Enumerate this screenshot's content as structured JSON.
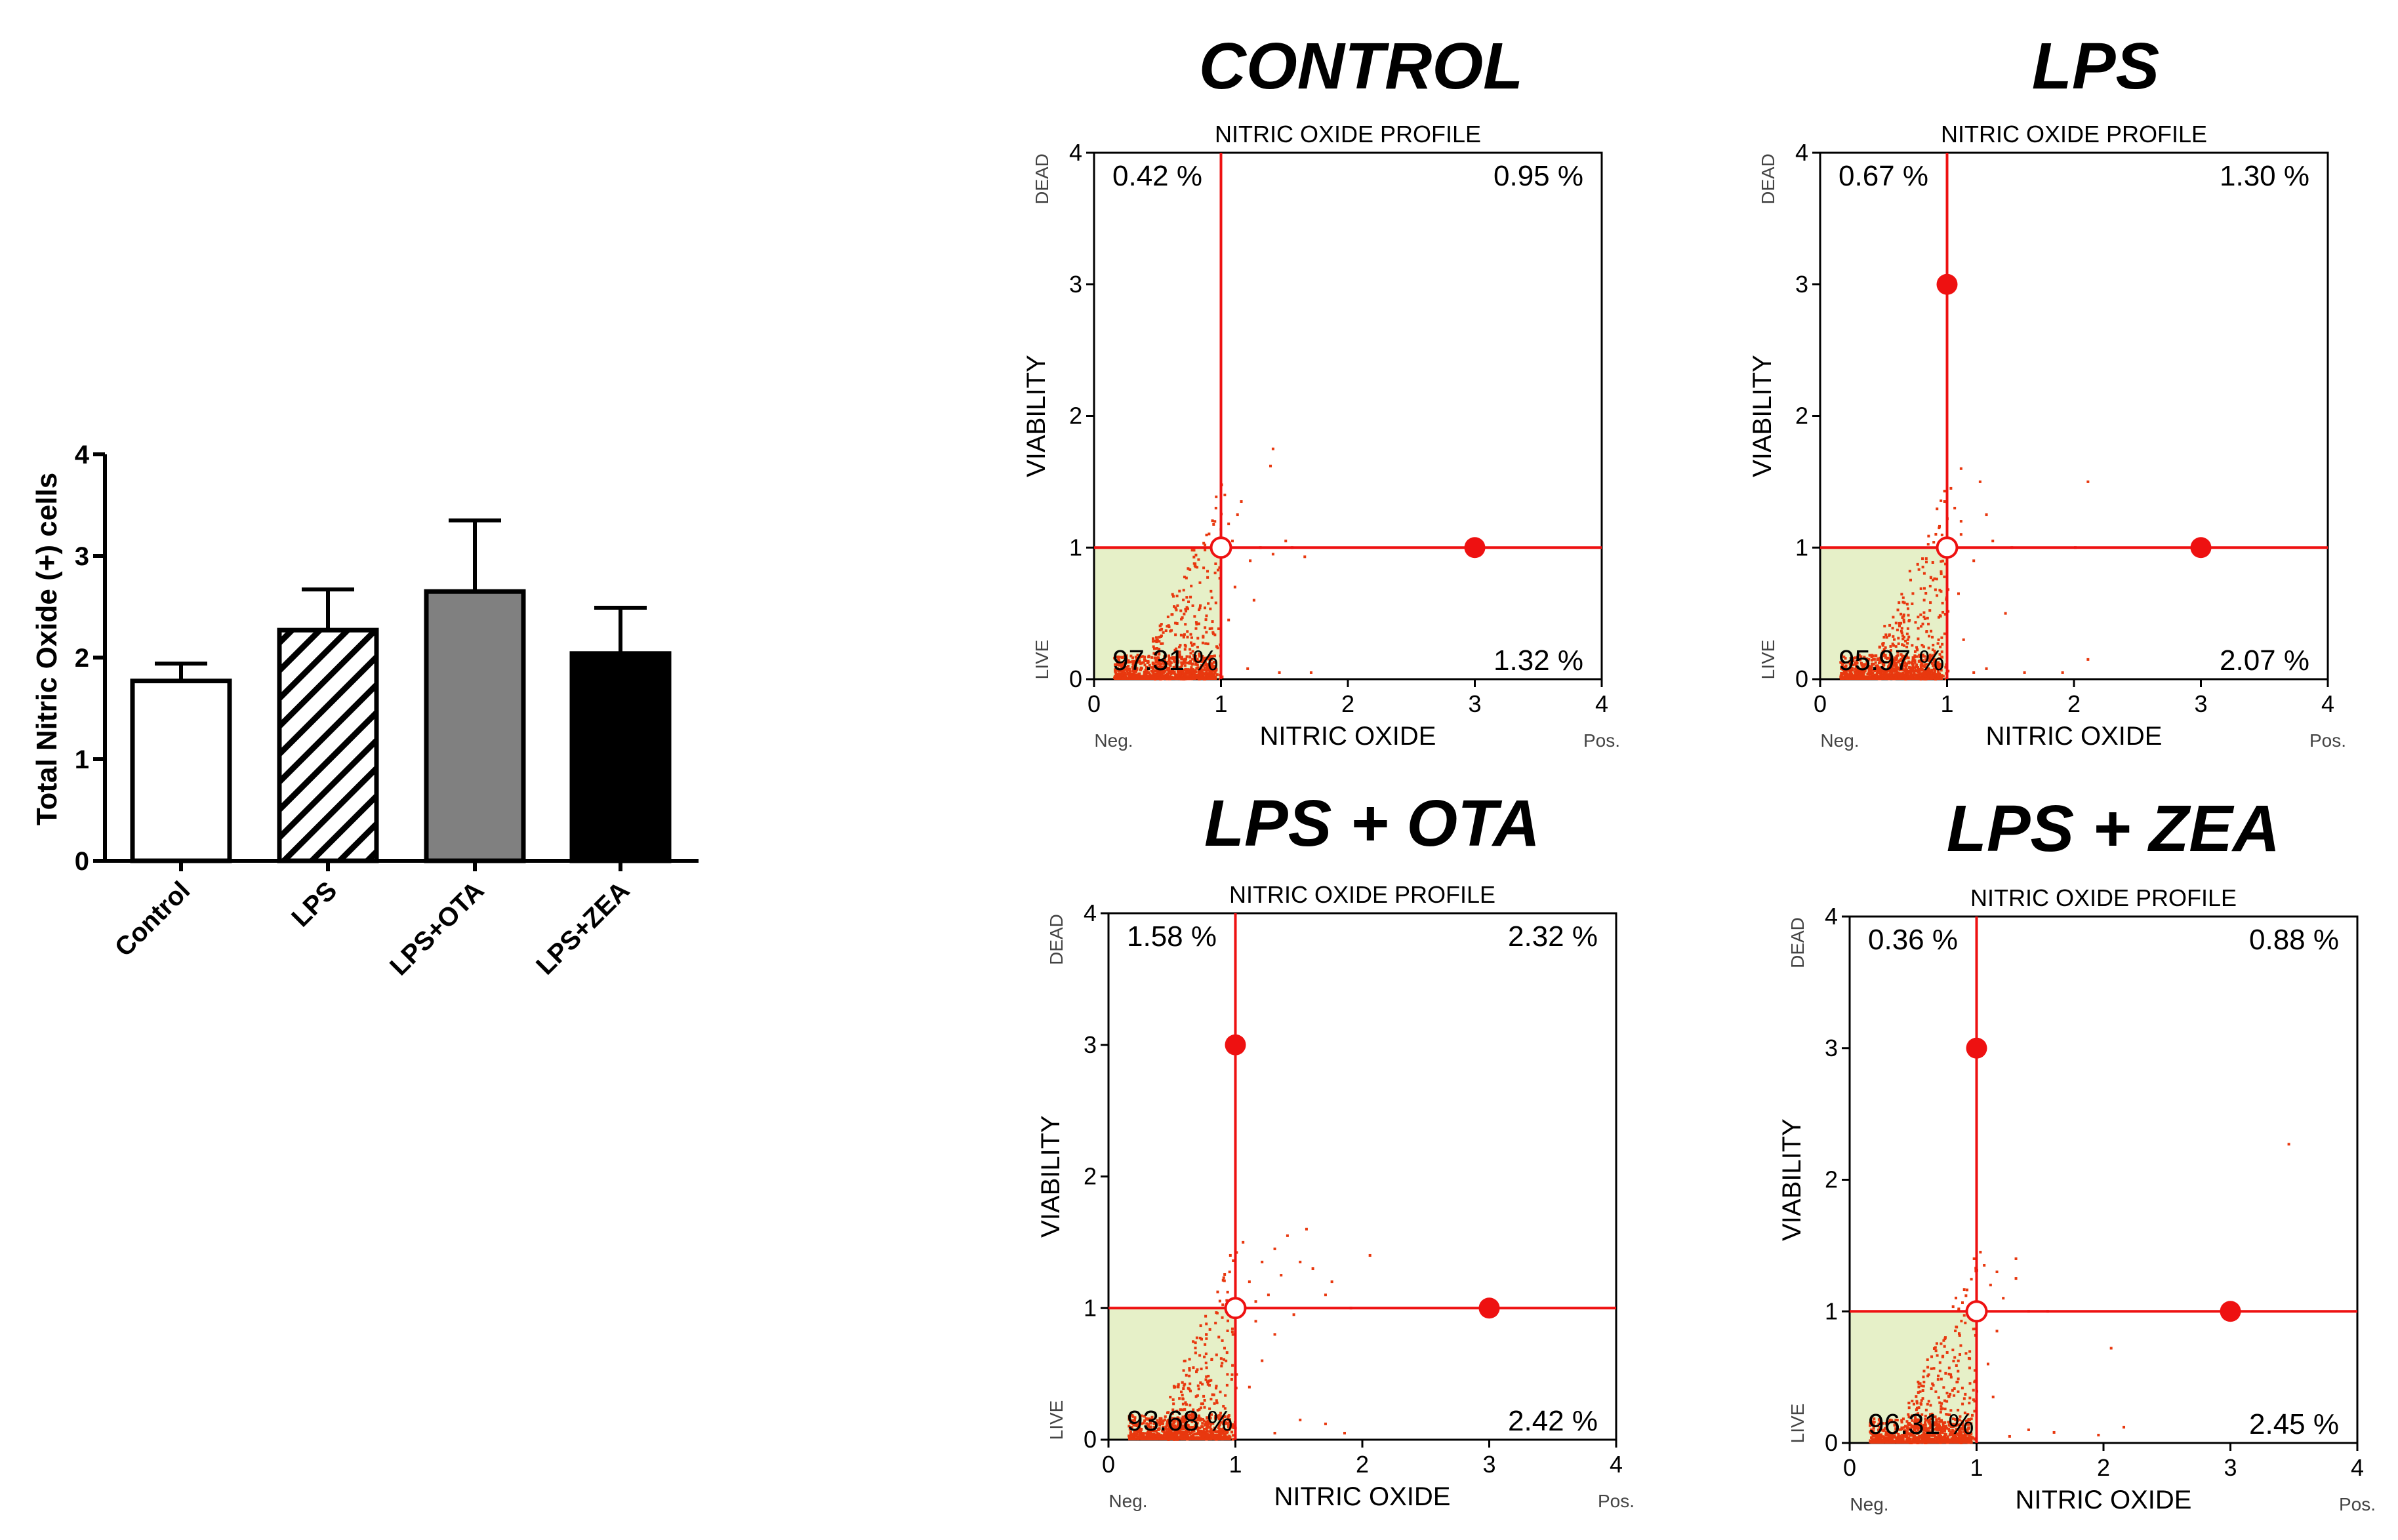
{
  "colors": {
    "red": "#ee1111",
    "scatter": "#e8380f",
    "live_region": "#e6f0c8",
    "black": "#000000",
    "bar_ota": "#808080"
  },
  "bar_chart": {
    "ylabel": "Total Nitric Oxide (+) cells",
    "yticks": [
      "0",
      "1",
      "2",
      "3",
      "4"
    ],
    "ylim": [
      0,
      4
    ]
  },
  "chart_data": [
    {
      "type": "bar",
      "title": "",
      "xlabel": "",
      "ylabel": "Total Nitric Oxide (+) cells",
      "ylim": [
        0,
        4
      ],
      "categories": [
        "Control",
        "LPS",
        "LPS+OTA",
        "LPS+ZEA"
      ],
      "values": [
        1.77,
        2.27,
        2.65,
        2.04
      ],
      "errors": [
        0.17,
        0.4,
        0.7,
        0.45
      ],
      "fills": [
        "white",
        "hatched",
        "gray",
        "black"
      ],
      "grid": false
    },
    {
      "type": "scatter",
      "title": "CONTROL",
      "subtitle": "NITRIC OXIDE PROFILE",
      "xlabel": "NITRIC OXIDE",
      "ylabel": "VIABILITY",
      "xlim": [
        0,
        4
      ],
      "ylim": [
        0,
        4
      ],
      "x_end_labels": [
        "Neg.",
        "Pos."
      ],
      "y_end_labels": [
        "LIVE",
        "DEAD"
      ],
      "quadrants": {
        "upper_left": "0.42 %",
        "upper_right": "0.95 %",
        "lower_left": "97.31 %",
        "lower_right": "1.32 %"
      },
      "gate": {
        "x": 1,
        "y": 1
      },
      "markers": [
        {
          "x": 1,
          "y": 1,
          "style": "open"
        },
        {
          "x": 3,
          "y": 1,
          "style": "filled"
        }
      ],
      "sparse_points": [
        [
          1.08,
          1.05
        ],
        [
          1.12,
          1.25
        ],
        [
          1.05,
          1.18
        ],
        [
          1.3,
          1.0
        ],
        [
          1.4,
          0.95
        ],
        [
          1.55,
          1.0
        ],
        [
          1.38,
          1.62
        ],
        [
          1.4,
          1.75
        ],
        [
          1.15,
          1.35
        ],
        [
          1.22,
          0.9
        ],
        [
          1.5,
          1.05
        ],
        [
          1.65,
          0.93
        ],
        [
          1.1,
          0.7
        ],
        [
          1.25,
          0.6
        ],
        [
          1.05,
          0.45
        ],
        [
          1.45,
          0.05
        ],
        [
          1.7,
          0.05
        ],
        [
          1.2,
          0.08
        ],
        [
          1.02,
          1.4
        ],
        [
          0.95,
          1.3
        ]
      ]
    },
    {
      "type": "scatter",
      "title": "LPS",
      "subtitle": "NITRIC OXIDE PROFILE",
      "xlabel": "NITRIC OXIDE",
      "ylabel": "VIABILITY",
      "xlim": [
        0,
        4
      ],
      "ylim": [
        0,
        4
      ],
      "x_end_labels": [
        "Neg.",
        "Pos."
      ],
      "y_end_labels": [
        "LIVE",
        "DEAD"
      ],
      "quadrants": {
        "upper_left": "0.67 %",
        "upper_right": "1.30 %",
        "lower_left": "95.97 %",
        "lower_right": "2.07 %"
      },
      "gate": {
        "x": 1,
        "y": 1
      },
      "markers": [
        {
          "x": 1,
          "y": 1,
          "style": "open"
        },
        {
          "x": 1,
          "y": 3,
          "style": "filled"
        },
        {
          "x": 3,
          "y": 1,
          "style": "filled"
        }
      ],
      "sparse_points": [
        [
          1.1,
          1.2
        ],
        [
          1.05,
          1.3
        ],
        [
          1.1,
          1.1
        ],
        [
          1.35,
          1.05
        ],
        [
          1.5,
          1.0
        ],
        [
          1.1,
          1.6
        ],
        [
          1.25,
          1.5
        ],
        [
          2.1,
          1.5
        ],
        [
          2.0,
          1.0
        ],
        [
          1.2,
          0.9
        ],
        [
          1.08,
          0.65
        ],
        [
          1.12,
          0.3
        ],
        [
          1.3,
          0.08
        ],
        [
          1.6,
          0.05
        ],
        [
          1.9,
          0.05
        ],
        [
          2.1,
          0.15
        ],
        [
          1.45,
          0.5
        ],
        [
          1.2,
          0.05
        ],
        [
          1.02,
          1.45
        ],
        [
          0.97,
          1.35
        ],
        [
          1.3,
          1.25
        ]
      ]
    },
    {
      "type": "scatter",
      "title": "LPS + OTA",
      "subtitle": "NITRIC OXIDE PROFILE",
      "xlabel": "NITRIC OXIDE",
      "ylabel": "VIABILITY",
      "xlim": [
        0,
        4
      ],
      "ylim": [
        0,
        4
      ],
      "x_end_labels": [
        "Neg.",
        "Pos."
      ],
      "y_end_labels": [
        "LIVE",
        "DEAD"
      ],
      "quadrants": {
        "upper_left": "1.58 %",
        "upper_right": "2.32 %",
        "lower_left": "93.68 %",
        "lower_right": "2.42 %"
      },
      "gate": {
        "x": 1,
        "y": 1
      },
      "markers": [
        {
          "x": 1,
          "y": 1,
          "style": "open"
        },
        {
          "x": 1,
          "y": 3,
          "style": "filled"
        },
        {
          "x": 3,
          "y": 1,
          "style": "filled"
        }
      ],
      "sparse_points": [
        [
          1.1,
          1.2
        ],
        [
          1.2,
          1.35
        ],
        [
          1.3,
          1.45
        ],
        [
          1.4,
          1.55
        ],
        [
          1.5,
          1.35
        ],
        [
          1.6,
          1.3
        ],
        [
          1.75,
          1.2
        ],
        [
          2.05,
          1.4
        ],
        [
          1.9,
          1.0
        ],
        [
          1.25,
          1.1
        ],
        [
          1.35,
          1.25
        ],
        [
          1.15,
          0.9
        ],
        [
          1.45,
          0.95
        ],
        [
          1.3,
          0.8
        ],
        [
          1.2,
          0.6
        ],
        [
          1.1,
          0.4
        ],
        [
          1.5,
          0.15
        ],
        [
          1.7,
          0.12
        ],
        [
          1.3,
          0.05
        ],
        [
          1.85,
          0.05
        ],
        [
          1.05,
          1.5
        ],
        [
          0.95,
          1.4
        ],
        [
          1.55,
          1.6
        ],
        [
          1.7,
          1.1
        ],
        [
          1.15,
          1.05
        ]
      ]
    },
    {
      "type": "scatter",
      "title": "LPS + ZEA",
      "subtitle": "NITRIC OXIDE PROFILE",
      "xlabel": "NITRIC OXIDE",
      "ylabel": "VIABILITY",
      "xlim": [
        0,
        4
      ],
      "ylim": [
        0,
        4
      ],
      "x_end_labels": [
        "Neg.",
        "Pos."
      ],
      "y_end_labels": [
        "LIVE",
        "DEAD"
      ],
      "quadrants": {
        "upper_left": "0.36 %",
        "upper_right": "0.88 %",
        "lower_left": "96.31 %",
        "lower_right": "2.45 %"
      },
      "gate": {
        "x": 1,
        "y": 1
      },
      "markers": [
        {
          "x": 1,
          "y": 1,
          "style": "open"
        },
        {
          "x": 1,
          "y": 3,
          "style": "filled"
        },
        {
          "x": 3,
          "y": 1,
          "style": "filled"
        }
      ],
      "sparse_points": [
        [
          1.1,
          1.2
        ],
        [
          1.15,
          1.3
        ],
        [
          1.2,
          1.1
        ],
        [
          1.3,
          1.25
        ],
        [
          1.05,
          1.35
        ],
        [
          1.4,
          1.0
        ],
        [
          1.55,
          1.0
        ],
        [
          2.05,
          0.72
        ],
        [
          3.45,
          2.27
        ],
        [
          1.15,
          0.85
        ],
        [
          1.08,
          0.6
        ],
        [
          1.12,
          0.35
        ],
        [
          1.4,
          0.1
        ],
        [
          1.6,
          0.08
        ],
        [
          1.95,
          0.06
        ],
        [
          2.15,
          0.12
        ],
        [
          1.25,
          0.05
        ],
        [
          1.02,
          1.45
        ],
        [
          0.97,
          1.4
        ],
        [
          1.3,
          1.4
        ]
      ]
    }
  ]
}
